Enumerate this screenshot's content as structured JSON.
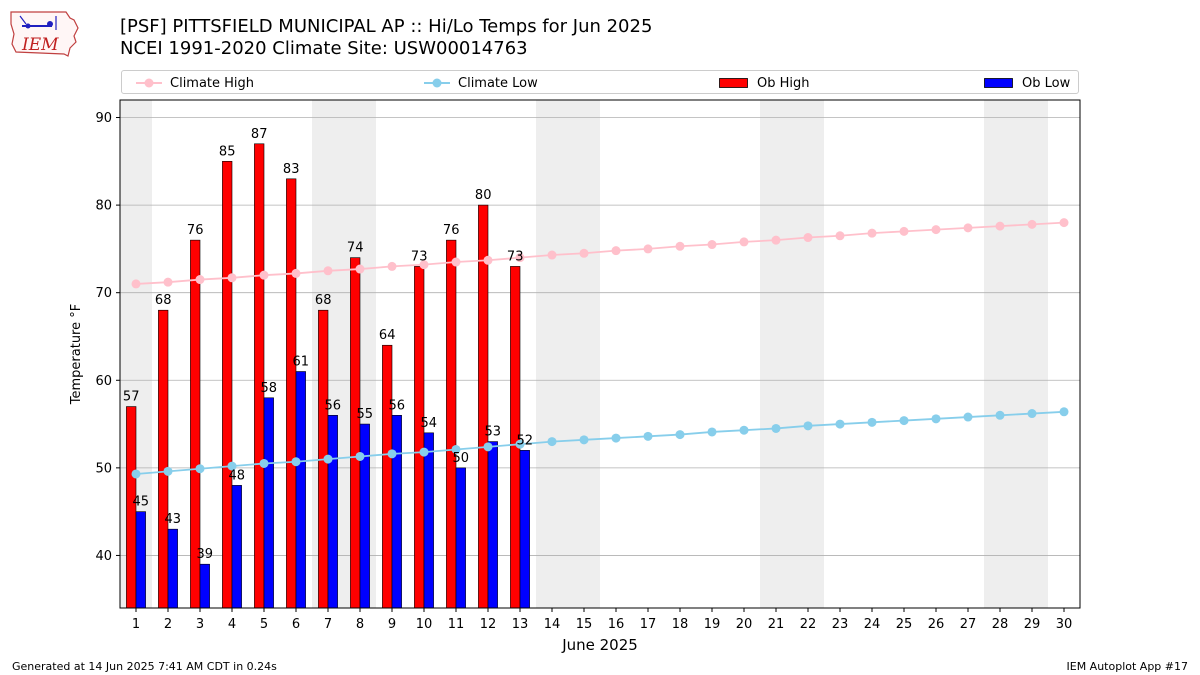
{
  "header": {
    "title_line1": "[PSF] PITTSFIELD MUNICIPAL AP :: Hi/Lo Temps for Jun 2025",
    "title_line2": "NCEI 1991-2020 Climate Site: USW00014763"
  },
  "logo": {
    "text": "IEM"
  },
  "legend": {
    "climate_high": "Climate High",
    "climate_low": "Climate Low",
    "ob_high": "Ob High",
    "ob_low": "Ob Low"
  },
  "footer": {
    "left": "Generated at 14 Jun 2025 7:41 AM CDT in 0.24s",
    "right": "IEM Autoplot App #17"
  },
  "colors": {
    "climate_high": "#ffc0cb",
    "climate_low": "#87ceeb",
    "ob_high": "#ff0000",
    "ob_low": "#0000ff",
    "weekend_shade": "#eeeeee",
    "grid": "#b0b0b0"
  },
  "chart_data": {
    "type": "bar",
    "xlabel": "June 2025",
    "ylabel": "Temperature °F",
    "xlim": [
      0.5,
      30.5
    ],
    "ylim": [
      34,
      92
    ],
    "yticks": [
      40,
      50,
      60,
      70,
      80,
      90
    ],
    "grid": "horizontal",
    "legend_position": "top",
    "shaded_days": [
      1,
      7,
      8,
      14,
      15,
      21,
      22,
      28,
      29
    ],
    "days": [
      1,
      2,
      3,
      4,
      5,
      6,
      7,
      8,
      9,
      10,
      11,
      12,
      13,
      14,
      15,
      16,
      17,
      18,
      19,
      20,
      21,
      22,
      23,
      24,
      25,
      26,
      27,
      28,
      29,
      30
    ],
    "series": [
      {
        "name": "Ob High",
        "kind": "bar",
        "days": [
          1,
          2,
          3,
          4,
          5,
          6,
          7,
          8,
          9,
          10,
          11,
          12,
          13
        ],
        "values": [
          57,
          68,
          76,
          85,
          87,
          83,
          68,
          74,
          64,
          73,
          76,
          80,
          73
        ]
      },
      {
        "name": "Ob Low",
        "kind": "bar",
        "days": [
          1,
          2,
          3,
          4,
          5,
          6,
          7,
          8,
          9,
          10,
          11,
          12,
          13
        ],
        "values": [
          45,
          43,
          39,
          48,
          58,
          61,
          56,
          55,
          56,
          54,
          50,
          53,
          52
        ]
      },
      {
        "name": "Climate High",
        "kind": "line",
        "values": [
          71.0,
          71.2,
          71.5,
          71.7,
          72.0,
          72.2,
          72.5,
          72.7,
          73.0,
          73.2,
          73.5,
          73.7,
          74.0,
          74.3,
          74.5,
          74.8,
          75.0,
          75.3,
          75.5,
          75.8,
          76.0,
          76.3,
          76.5,
          76.8,
          77.0,
          77.2,
          77.4,
          77.6,
          77.8,
          78.0
        ]
      },
      {
        "name": "Climate Low",
        "kind": "line",
        "values": [
          49.3,
          49.6,
          49.9,
          50.2,
          50.5,
          50.7,
          51.0,
          51.3,
          51.6,
          51.8,
          52.1,
          52.4,
          52.7,
          53.0,
          53.2,
          53.4,
          53.6,
          53.8,
          54.1,
          54.3,
          54.5,
          54.8,
          55.0,
          55.2,
          55.4,
          55.6,
          55.8,
          56.0,
          56.2,
          56.4
        ]
      }
    ]
  }
}
